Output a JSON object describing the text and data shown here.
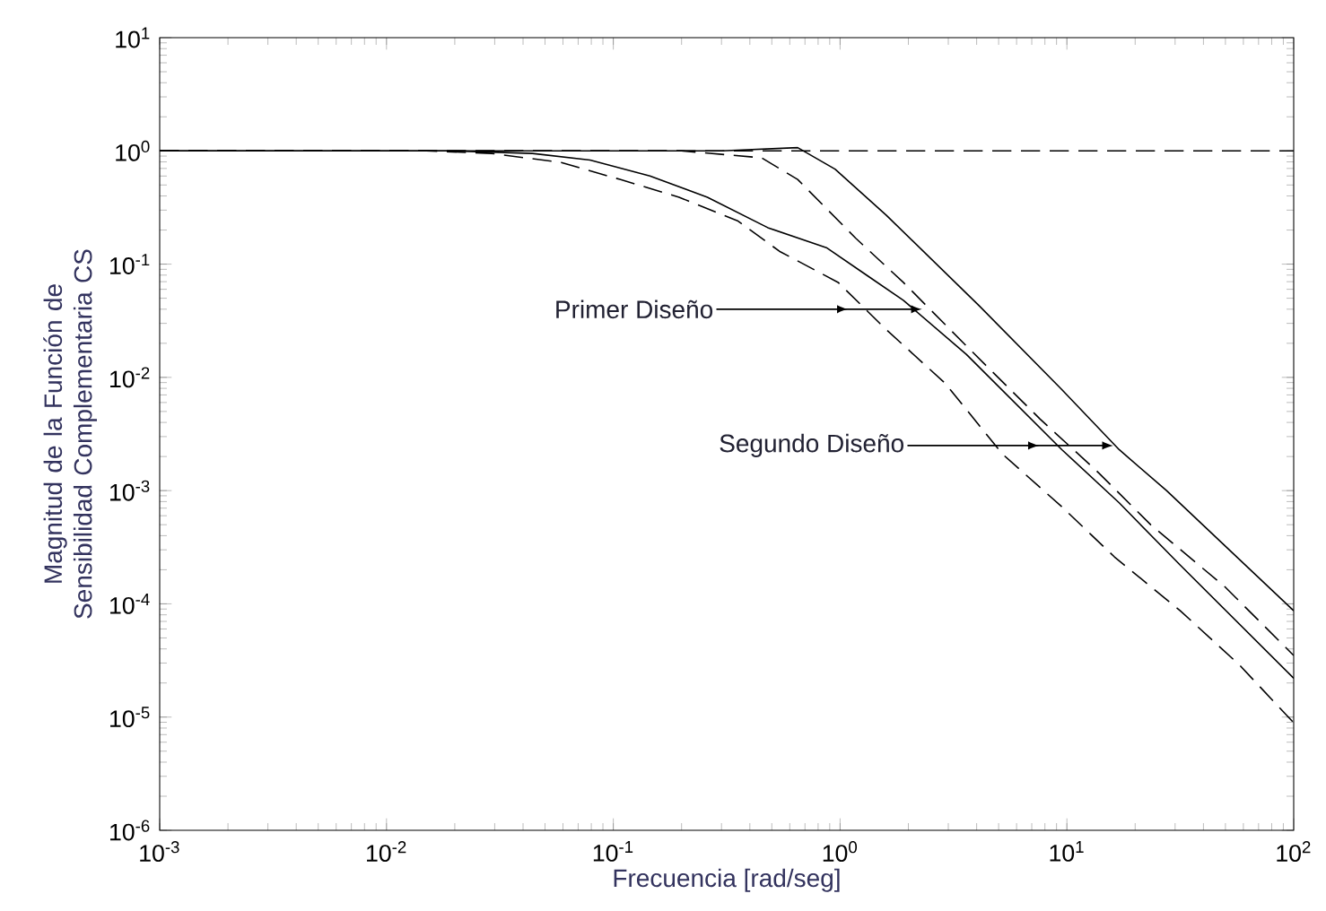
{
  "chart_data": {
    "type": "line",
    "xlabel": "Frecuencia [rad/seg]",
    "ylabel": "Magnitud de la Función de Sensibilidad Complementaria CS",
    "log": "xy",
    "xlim": [
      0.001,
      100
    ],
    "ylim": [
      1e-06,
      10
    ],
    "xticks": [
      {
        "value": 0.001,
        "label": "10$^{-3}$"
      },
      {
        "value": 0.01,
        "label": "10$^{-2}$"
      },
      {
        "value": 0.1,
        "label": "10$^{-1}$"
      },
      {
        "value": 1,
        "label": "10$^{0}$"
      },
      {
        "value": 10,
        "label": "10$^{1}$"
      },
      {
        "value": 100,
        "label": "10$^{2}$"
      }
    ],
    "yticks": [
      {
        "value": 1e-06,
        "label": "10$^{-6}$"
      },
      {
        "value": 1e-05,
        "label": "10$^{-5}$"
      },
      {
        "value": 0.0001,
        "label": "10$^{-4}$"
      },
      {
        "value": 0.001,
        "label": "10$^{-3}$"
      },
      {
        "value": 0.01,
        "label": "10$^{-2}$"
      },
      {
        "value": 0.1,
        "label": "10$^{-1}$"
      },
      {
        "value": 1,
        "label": "10$^{0}$"
      },
      {
        "value": 10,
        "label": "10$^{1}$"
      }
    ],
    "series": [
      {
        "color": "#000000",
        "line_style": "dashed",
        "x": [
          0.001,
          100
        ],
        "values": [
          1,
          1
        ]
      },
      {
        "color": "#000000",
        "line_style": "solid",
        "x": [
          0.001,
          0.3,
          0.65,
          0.95,
          1.6,
          4.1,
          9.5,
          17,
          27.5,
          100
        ],
        "values": [
          1,
          1,
          1.07,
          0.69,
          0.27,
          0.043,
          0.0078,
          0.0023,
          0.001,
          8.7e-05
        ]
      },
      {
        "color": "#000000",
        "line_style": "dashed",
        "x": [
          0.001,
          0.2,
          0.45,
          0.65,
          1.17,
          1.9,
          3.6,
          7.6,
          13.5,
          23.4,
          50,
          100
        ],
        "values": [
          1,
          1,
          0.87,
          0.56,
          0.17,
          0.069,
          0.019,
          0.0043,
          0.0015,
          0.0005,
          0.00014,
          3.5e-05
        ]
      },
      {
        "color": "#000000",
        "line_style": "solid",
        "x": [
          0.001,
          0.02,
          0.044,
          0.079,
          0.145,
          0.26,
          0.48,
          0.87,
          1.32,
          1.9,
          3.6,
          9.5,
          17,
          31.6,
          100
        ],
        "values": [
          1,
          1,
          0.95,
          0.83,
          0.6,
          0.39,
          0.21,
          0.14,
          0.079,
          0.048,
          0.016,
          0.0023,
          0.00078,
          0.00022,
          2.2e-05
        ]
      },
      {
        "color": "#000000",
        "line_style": "dashed",
        "x": [
          0.001,
          0.015,
          0.029,
          0.059,
          0.107,
          0.195,
          0.355,
          0.54,
          0.98,
          1.58,
          2.9,
          5.2,
          9.5,
          16.2,
          31.6,
          57.5,
          100
        ],
        "values": [
          1,
          1,
          0.95,
          0.79,
          0.56,
          0.39,
          0.24,
          0.13,
          0.069,
          0.027,
          0.0089,
          0.0021,
          0.00072,
          0.00026,
          8.7e-05,
          2.9e-05,
          8.9e-06
        ]
      }
    ],
    "annotations": [
      {
        "text": "Primer Diseño",
        "x": 2.3,
        "y": 0.04
      },
      {
        "text": "Segundo Diseño",
        "x": 16,
        "y": 0.0025
      }
    ]
  }
}
